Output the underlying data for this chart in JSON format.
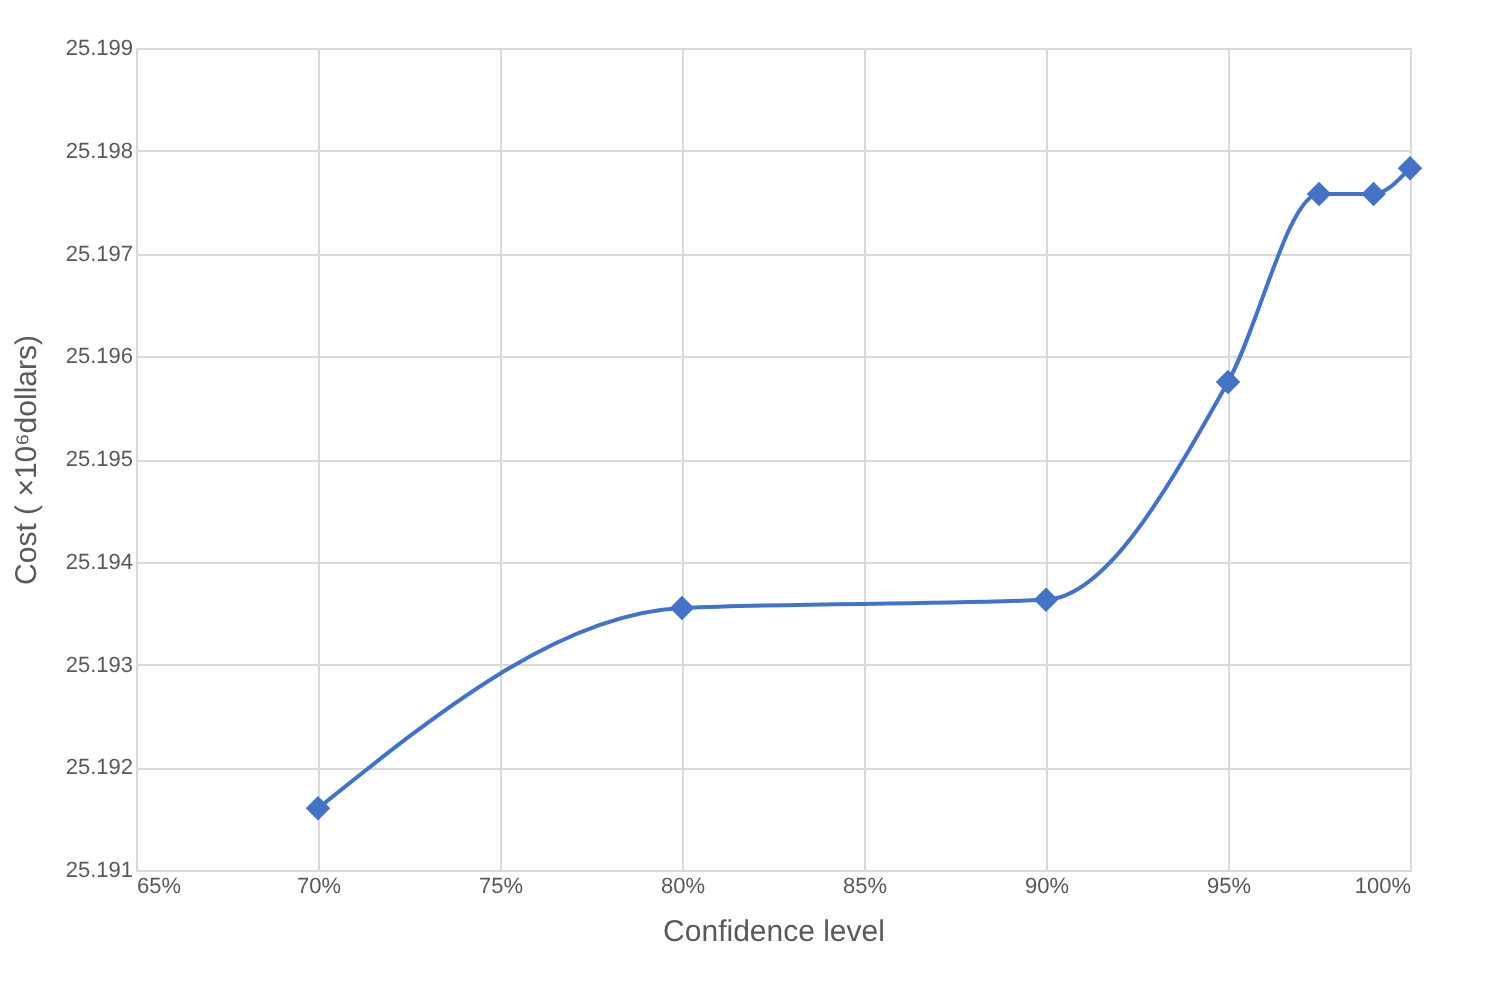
{
  "chart_data": {
    "type": "line",
    "xlabel": "Confidence level",
    "ylabel": "Cost ( ×10⁶dollars)",
    "x": [
      70,
      80,
      90,
      95,
      97.5,
      99,
      100
    ],
    "series": [
      {
        "color": "#4472c4",
        "values": [
          25.1916,
          25.19355,
          25.19363,
          25.19575,
          25.19758,
          25.19758,
          25.19783
        ]
      }
    ],
    "xlim": [
      65,
      100
    ],
    "xticks": [
      {
        "value": 65,
        "label": "65%"
      },
      {
        "value": 70,
        "label": "70%"
      },
      {
        "value": 75,
        "label": "75%"
      },
      {
        "value": 80,
        "label": "80%"
      },
      {
        "value": 85,
        "label": "85%"
      },
      {
        "value": 90,
        "label": "90%"
      },
      {
        "value": 95,
        "label": "95%"
      },
      {
        "value": 100,
        "label": "100%"
      }
    ],
    "ylim": [
      25.191,
      25.199
    ],
    "yticks": [
      25.191,
      25.192,
      25.193,
      25.194,
      25.195,
      25.196,
      25.197,
      25.198,
      25.199
    ],
    "grid": true,
    "marker": "diamond",
    "line_style": "solid"
  }
}
